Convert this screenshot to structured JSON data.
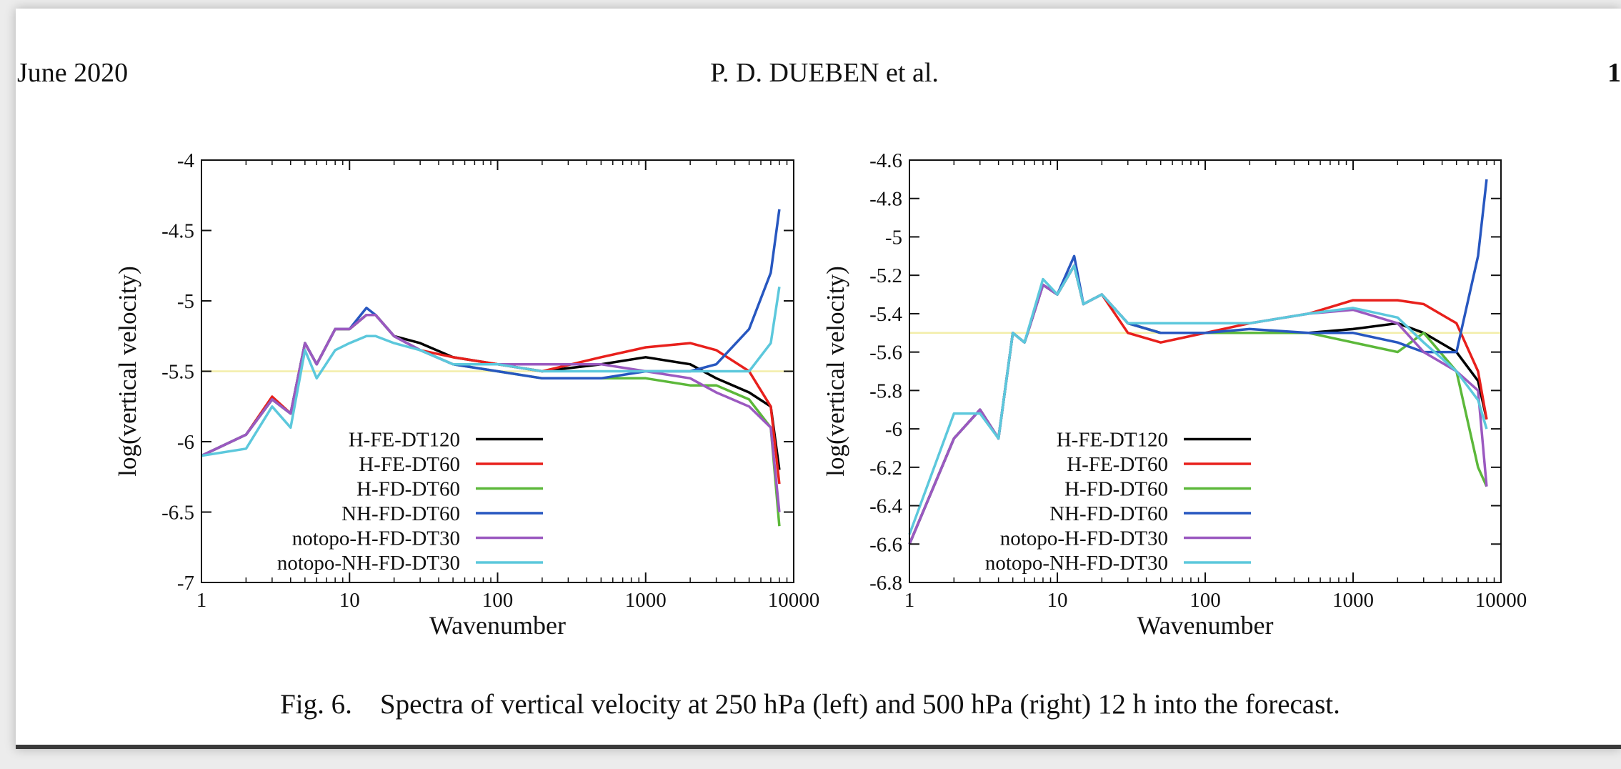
{
  "header": {
    "date": "June 2020",
    "authors": "P. D. DUEBEN et al.",
    "page_number": "1"
  },
  "caption": "Fig. 6. Spectra of vertical velocity at 250 hPa (left) and 500 hPa (right) 12 h into the forecast.",
  "chart_data": [
    {
      "type": "line",
      "x_label": "Wavenumber",
      "y_label": "log(vertical velocity)",
      "xscale": "log",
      "xlim": [
        1,
        10000
      ],
      "xticks": [
        1,
        10,
        100,
        1000,
        10000
      ],
      "ylim": [
        -7,
        -4
      ],
      "yticks": [
        -4,
        -4.5,
        -5,
        -5.5,
        -6,
        -6.5,
        -7
      ],
      "legend": "lower left",
      "hline": {
        "value": -5.5,
        "color": "#f3eeaa"
      },
      "x": [
        1,
        2,
        3,
        4,
        5,
        6,
        8,
        10,
        13,
        15,
        20,
        30,
        50,
        100,
        200,
        500,
        1000,
        2000,
        3000,
        5000,
        7000,
        8000
      ],
      "series": [
        {
          "name": "H-FE-DT120",
          "color": "#000000",
          "values": [
            -6.1,
            -5.95,
            -5.7,
            -5.8,
            -5.3,
            -5.45,
            -5.2,
            -5.2,
            -5.1,
            -5.1,
            -5.25,
            -5.3,
            -5.4,
            -5.45,
            -5.5,
            -5.45,
            -5.4,
            -5.45,
            -5.55,
            -5.65,
            -5.75,
            -6.2
          ]
        },
        {
          "name": "H-FE-DT60",
          "color": "#e8201c",
          "values": [
            -6.1,
            -5.95,
            -5.68,
            -5.8,
            -5.3,
            -5.45,
            -5.2,
            -5.2,
            -5.1,
            -5.1,
            -5.25,
            -5.35,
            -5.4,
            -5.45,
            -5.5,
            -5.4,
            -5.33,
            -5.3,
            -5.35,
            -5.5,
            -5.75,
            -6.3
          ]
        },
        {
          "name": "H-FD-DT60",
          "color": "#5cb83a",
          "values": [
            -6.1,
            -5.95,
            -5.7,
            -5.8,
            -5.3,
            -5.45,
            -5.2,
            -5.2,
            -5.1,
            -5.1,
            -5.25,
            -5.35,
            -5.45,
            -5.5,
            -5.55,
            -5.55,
            -5.55,
            -5.6,
            -5.6,
            -5.7,
            -5.9,
            -6.6
          ]
        },
        {
          "name": "NH-FD-DT60",
          "color": "#2757c0",
          "values": [
            -6.1,
            -5.95,
            -5.7,
            -5.8,
            -5.3,
            -5.45,
            -5.2,
            -5.2,
            -5.05,
            -5.1,
            -5.25,
            -5.35,
            -5.45,
            -5.5,
            -5.55,
            -5.55,
            -5.5,
            -5.5,
            -5.45,
            -5.2,
            -4.8,
            -4.35
          ]
        },
        {
          "name": "notopo-H-FD-DT30",
          "color": "#9b59c0",
          "values": [
            -6.1,
            -5.95,
            -5.7,
            -5.8,
            -5.3,
            -5.45,
            -5.2,
            -5.2,
            -5.1,
            -5.1,
            -5.25,
            -5.35,
            -5.45,
            -5.45,
            -5.45,
            -5.45,
            -5.5,
            -5.55,
            -5.65,
            -5.75,
            -5.9,
            -6.5
          ]
        },
        {
          "name": "notopo-NH-FD-DT30",
          "color": "#5cc8dc",
          "values": [
            -6.1,
            -6.05,
            -5.75,
            -5.9,
            -5.35,
            -5.55,
            -5.35,
            -5.3,
            -5.25,
            -5.25,
            -5.3,
            -5.35,
            -5.45,
            -5.45,
            -5.5,
            -5.5,
            -5.5,
            -5.5,
            -5.5,
            -5.5,
            -5.3,
            -4.9
          ]
        }
      ]
    },
    {
      "type": "line",
      "x_label": "Wavenumber",
      "y_label": "log(vertical velocity)",
      "xscale": "log",
      "xlim": [
        1,
        10000
      ],
      "xticks": [
        1,
        10,
        100,
        1000,
        10000
      ],
      "ylim": [
        -6.8,
        -4.6
      ],
      "yticks": [
        -4.6,
        -4.8,
        -5,
        -5.2,
        -5.4,
        -5.6,
        -5.8,
        -6,
        -6.2,
        -6.4,
        -6.6,
        -6.8
      ],
      "legend": "lower left",
      "hline": {
        "value": -5.5,
        "color": "#f3eeaa"
      },
      "x": [
        1,
        2,
        3,
        4,
        5,
        6,
        8,
        10,
        13,
        15,
        20,
        30,
        50,
        100,
        200,
        500,
        1000,
        2000,
        3000,
        5000,
        7000,
        8000
      ],
      "series": [
        {
          "name": "H-FE-DT120",
          "color": "#000000",
          "values": [
            -6.6,
            -6.05,
            -5.9,
            -6.05,
            -5.5,
            -5.55,
            -5.25,
            -5.3,
            -5.15,
            -5.35,
            -5.3,
            -5.45,
            -5.5,
            -5.5,
            -5.5,
            -5.5,
            -5.48,
            -5.45,
            -5.5,
            -5.6,
            -5.75,
            -5.95
          ]
        },
        {
          "name": "H-FE-DT60",
          "color": "#e8201c",
          "values": [
            -6.6,
            -6.05,
            -5.9,
            -6.05,
            -5.5,
            -5.55,
            -5.25,
            -5.3,
            -5.15,
            -5.35,
            -5.3,
            -5.5,
            -5.55,
            -5.5,
            -5.45,
            -5.4,
            -5.33,
            -5.33,
            -5.35,
            -5.45,
            -5.7,
            -5.95
          ]
        },
        {
          "name": "H-FD-DT60",
          "color": "#5cb83a",
          "values": [
            -6.6,
            -6.05,
            -5.9,
            -6.05,
            -5.5,
            -5.55,
            -5.25,
            -5.3,
            -5.15,
            -5.35,
            -5.3,
            -5.45,
            -5.5,
            -5.5,
            -5.5,
            -5.5,
            -5.55,
            -5.6,
            -5.5,
            -5.7,
            -6.2,
            -6.3
          ]
        },
        {
          "name": "NH-FD-DT60",
          "color": "#2757c0",
          "values": [
            -6.6,
            -6.05,
            -5.9,
            -6.05,
            -5.5,
            -5.55,
            -5.25,
            -5.3,
            -5.1,
            -5.35,
            -5.3,
            -5.45,
            -5.5,
            -5.5,
            -5.48,
            -5.5,
            -5.5,
            -5.55,
            -5.6,
            -5.6,
            -5.1,
            -4.7
          ]
        },
        {
          "name": "notopo-H-FD-DT30",
          "color": "#9b59c0",
          "values": [
            -6.6,
            -6.05,
            -5.9,
            -6.05,
            -5.5,
            -5.55,
            -5.25,
            -5.3,
            -5.15,
            -5.35,
            -5.3,
            -5.45,
            -5.45,
            -5.45,
            -5.45,
            -5.4,
            -5.38,
            -5.45,
            -5.6,
            -5.7,
            -5.8,
            -6.3
          ]
        },
        {
          "name": "notopo-NH-FD-DT30",
          "color": "#5cc8dc",
          "values": [
            -6.55,
            -5.92,
            -5.92,
            -6.05,
            -5.5,
            -5.55,
            -5.22,
            -5.3,
            -5.15,
            -5.35,
            -5.3,
            -5.45,
            -5.45,
            -5.45,
            -5.45,
            -5.4,
            -5.37,
            -5.42,
            -5.55,
            -5.7,
            -5.85,
            -6.0
          ]
        }
      ]
    }
  ]
}
